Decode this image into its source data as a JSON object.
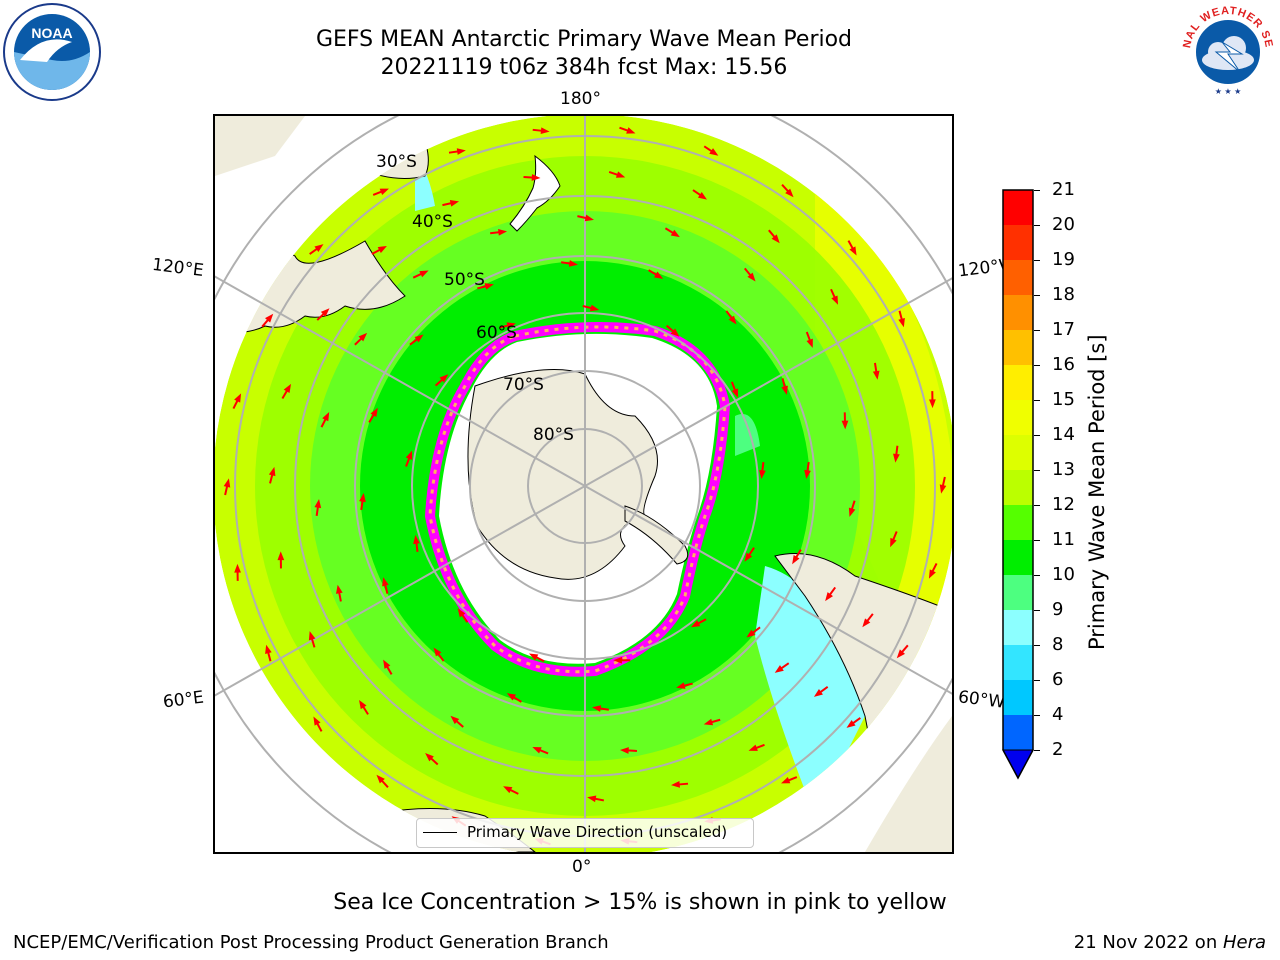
{
  "title": {
    "line1": "GEFS MEAN Antarctic Primary Wave Mean Period",
    "line2": "20221119 t06z 384h fcst   Max: 15.56"
  },
  "map": {
    "longitude_labels": {
      "top": "180°",
      "left_upper": "120°E",
      "right_upper": "120°W",
      "left_lower": "60°E",
      "right_lower": "60°W",
      "bottom": "0°"
    },
    "latitude_labels": [
      "30°S",
      "40°S",
      "50°S",
      "60°S",
      "70°S",
      "80°S"
    ],
    "legend_label": "Primary Wave Direction (unscaled)",
    "arrow_color": "#ff0000",
    "land_color": "#efecdc",
    "sea_ice_colors": [
      "#ff00ff",
      "#ff80c0",
      "#ffb060"
    ]
  },
  "colorbar": {
    "title": "Primary Wave Mean Period [s]",
    "ticks": [
      "2",
      "4",
      "6",
      "8",
      "9",
      "10",
      "11",
      "12",
      "13",
      "14",
      "15",
      "16",
      "17",
      "18",
      "19",
      "20",
      "21"
    ],
    "colors": [
      "#0066ff",
      "#00c8ff",
      "#33e5ff",
      "#8cffff",
      "#4dff80",
      "#00ee00",
      "#55ff00",
      "#bbff00",
      "#ddff00",
      "#f0ff00",
      "#ffee00",
      "#ffc000",
      "#ff9000",
      "#ff6000",
      "#ff3000",
      "#ff0000"
    ],
    "extend_color": "#0000ee"
  },
  "caption": "Sea Ice Concentration > 15% is shown in pink to yellow",
  "footer": {
    "left": "NCEP/EMC/Verification Post Processing Product Generation Branch",
    "right_date": "21 Nov 2022 on ",
    "right_host": "Hera"
  },
  "logos": {
    "noaa_text": "NOAA",
    "nws_text": "NATIONAL WEATHER SERVICE"
  }
}
